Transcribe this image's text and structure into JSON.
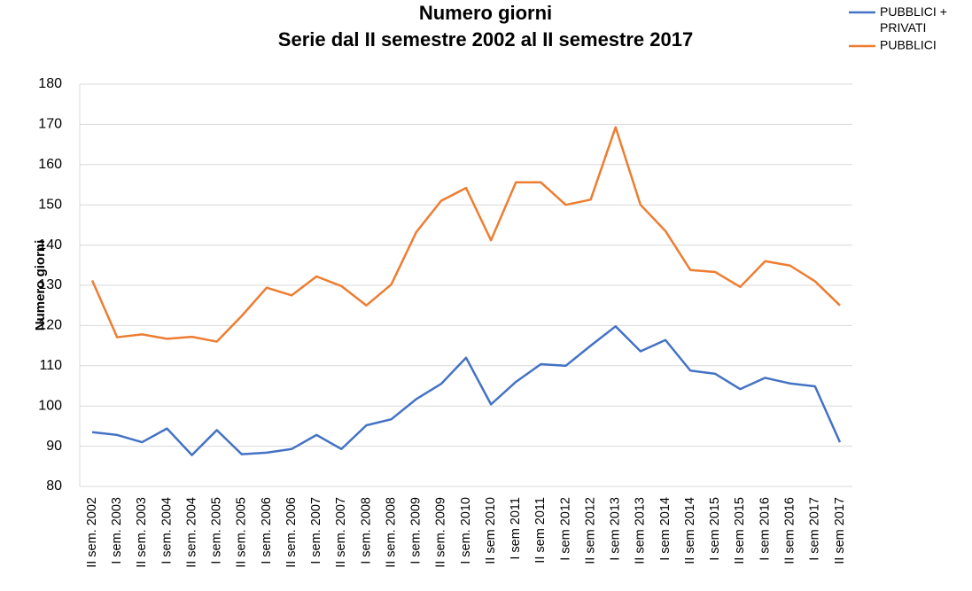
{
  "chart_data": {
    "type": "line",
    "title": "Numero giorni",
    "subtitle": "Serie dal II semestre 2002 al II semestre 2017",
    "y_label": "Numero giorni",
    "categories": [
      "II sem. 2002",
      "I sem. 2003",
      "II sem. 2003",
      "I sem. 2004",
      "II sem. 2004",
      "I sem. 2005",
      "II sem. 2005",
      "I sem. 2006",
      "II sem. 2006",
      "I sem. 2007",
      "II sem. 2007",
      "I sem. 2008",
      "II sem. 2008",
      "I sem. 2009",
      "II sem. 2009",
      "I sem. 2010",
      "II sem 2010",
      "I sem 2011",
      "II sem 2011",
      "I sem 2012",
      "II sem 2012",
      "I sem 2013",
      "II sem 2013",
      "I sem 2014",
      "II sem 2014",
      "I sem 2015",
      "II sem 2015",
      "I sem 2016",
      "II sem 2016",
      "I sem 2017",
      "II sem 2017"
    ],
    "series": [
      {
        "name": "PUBBLICI + PRIVATI",
        "color": "#4472c4",
        "values": [
          93.5,
          92.8,
          91,
          94.4,
          87.8,
          94,
          88,
          88.4,
          89.3,
          92.8,
          89.3,
          95.2,
          96.7,
          101.7,
          105.5,
          112,
          100.4,
          106,
          110.4,
          110,
          115,
          119.8,
          113.6,
          116.4,
          108.8,
          108,
          104.2,
          107,
          105.6,
          104.9,
          91
        ]
      },
      {
        "name": "PUBBLICI",
        "color": "#ed7d31",
        "values": [
          131.2,
          117.1,
          117.8,
          116.7,
          117.2,
          116,
          122.4,
          129.4,
          127.5,
          132.2,
          129.8,
          125,
          130.2,
          143.2,
          151,
          154.2,
          141.2,
          155.6,
          155.6,
          150,
          151.3,
          169.3,
          150,
          143.5,
          133.8,
          133.3,
          129.6,
          136,
          134.9,
          131,
          125
        ]
      }
    ],
    "ylim": [
      80,
      180
    ],
    "yticks": [
      80,
      90,
      100,
      110,
      120,
      130,
      140,
      150,
      160,
      170,
      180
    ],
    "grid": true,
    "legend": "top-right"
  }
}
